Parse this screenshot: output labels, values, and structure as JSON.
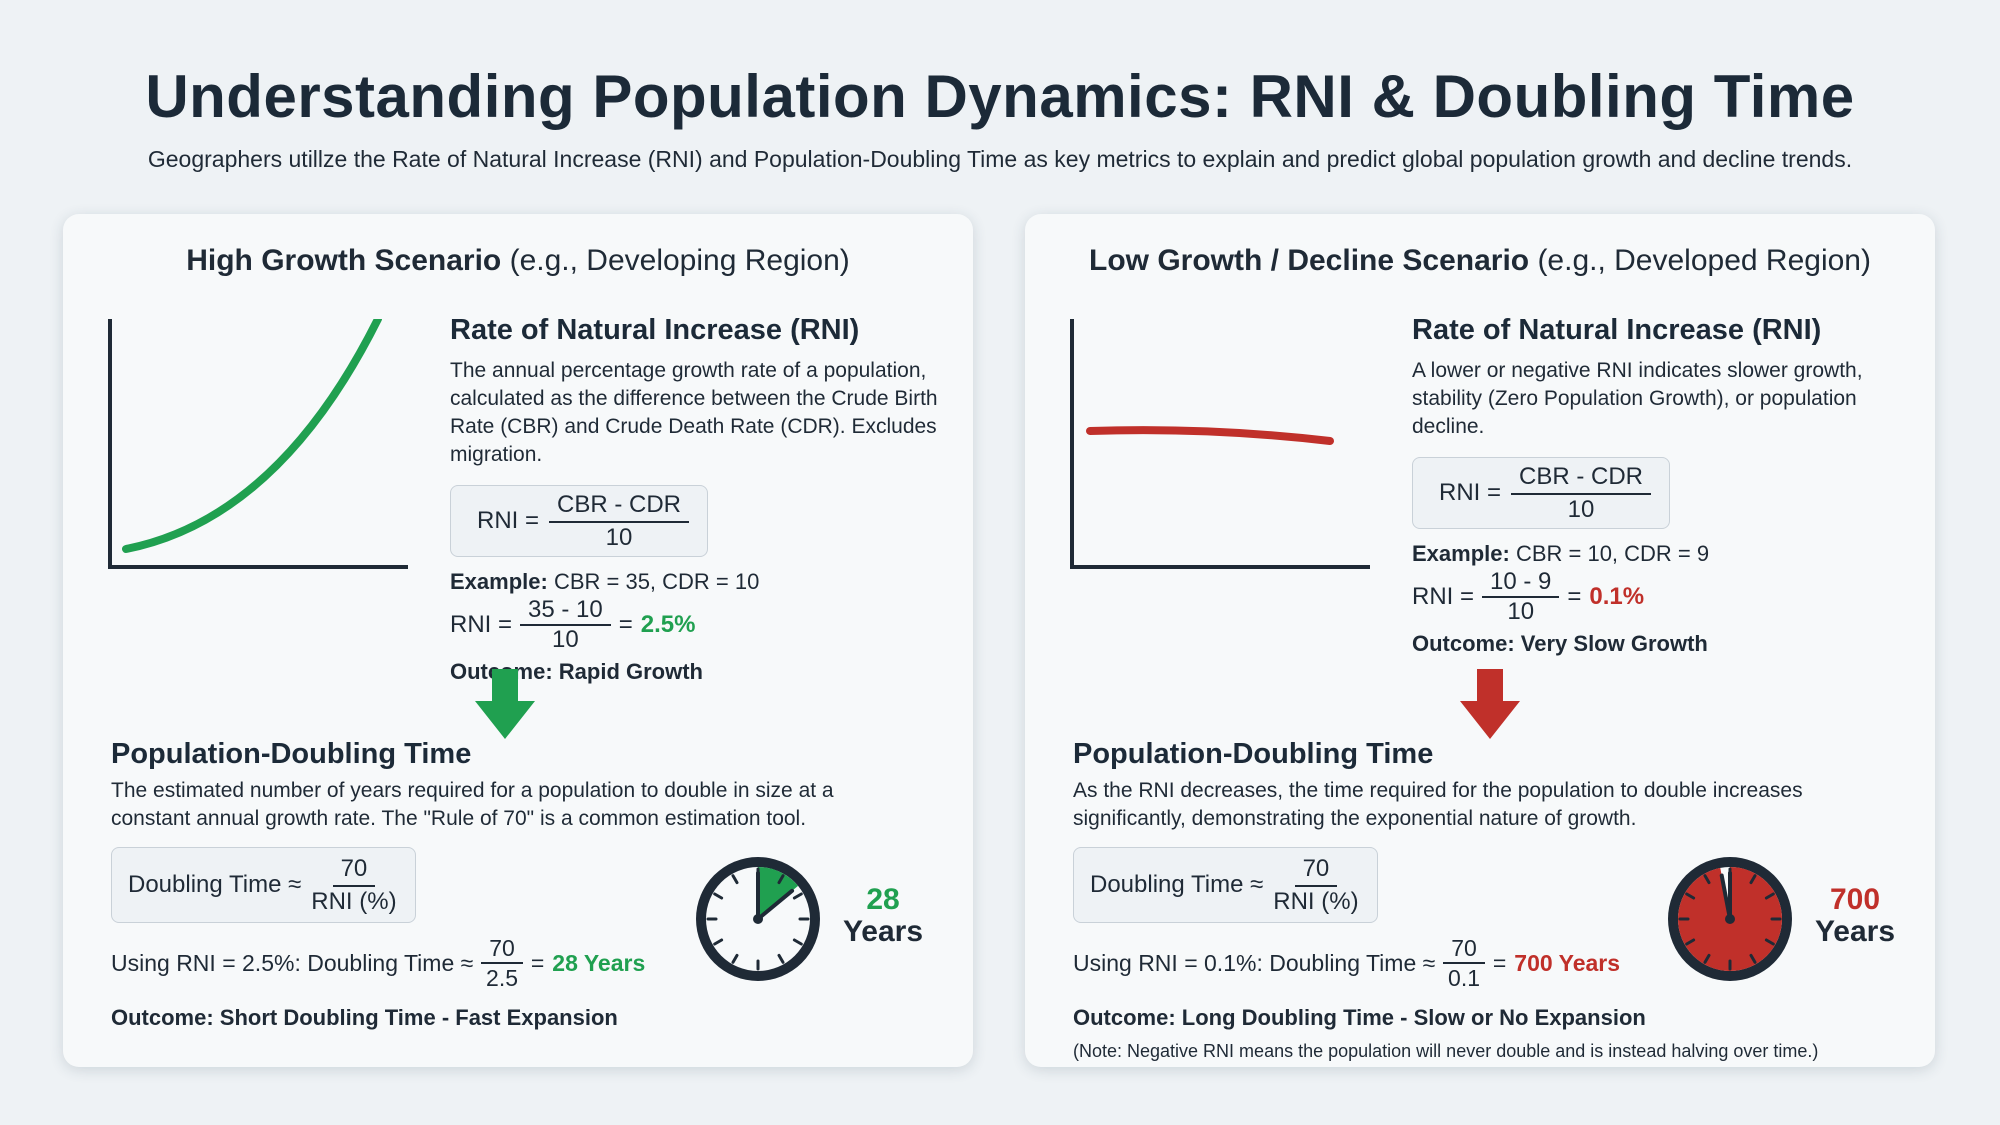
{
  "header": {
    "title": "Understanding Population Dynamics: RNI & Doubling Time",
    "subtitle": "Geographers utillze the Rate of Natural Increase (RNI) and Population-Doubling Time as key metrics to explain and predict global population growth and decline trends."
  },
  "colors": {
    "green": "#20a050",
    "red": "#c0302a",
    "dark": "#1f2a36"
  },
  "high": {
    "title_bold": "High Growth Scenario",
    "title_rest": " (e.g., Developing Region)",
    "rni_heading": "Rate of Natural Increase (RNI)",
    "rni_desc": "The annual percentage growth rate of a population, calculated as the difference between the Crude Birth Rate (CBR) and Crude Death Rate (CDR). Excludes migration.",
    "formula_lhs": "RNI =",
    "formula_num": "CBR - CDR",
    "formula_den": "10",
    "example_label": "Example:",
    "example_values": " CBR = 35, CDR = 10",
    "calc_lhs": "RNI =",
    "calc_num": "35 - 10",
    "calc_den": "10",
    "calc_eq": "=",
    "calc_result": "2.5%",
    "outcome": "Outcome: Rapid Growth",
    "dt_heading": "Population-Doubling Time",
    "dt_desc": "The estimated number of years required for a population to double in size at a constant annual growth rate. The \"Rule of 70\" is a common estimation tool.",
    "dt_lhs": "Doubling Time ≈",
    "dt_num": "70",
    "dt_den": "RNI (%)",
    "dt_calc_prefix": "Using RNI = 2.5%: Doubling Time ≈",
    "dt_calc_num": "70",
    "dt_calc_den": "2.5",
    "dt_calc_eq": "=",
    "dt_calc_result": "28 Years",
    "dt_outcome": "Outcome: Short Doubling Time - Fast Expansion",
    "clock_value": "28",
    "clock_unit": "Years",
    "clock_fraction": 0.14
  },
  "low": {
    "title_bold": "Low Growth / Decline Scenario",
    "title_rest": " (e.g., Developed Region)",
    "rni_heading": "Rate of Natural Increase (RNI)",
    "rni_desc": "A lower or negative RNI indicates slower growth, stability (Zero Population Growth), or population decline.",
    "formula_lhs": "RNI =",
    "formula_num": "CBR - CDR",
    "formula_den": "10",
    "example_label": "Example:",
    "example_values": " CBR = 10, CDR = 9",
    "calc_lhs": "RNI =",
    "calc_num": "10 - 9",
    "calc_den": "10",
    "calc_eq": "=",
    "calc_result": "0.1%",
    "outcome": "Outcome: Very Slow Growth",
    "dt_heading": "Population-Doubling Time",
    "dt_desc": "As the RNI decreases, the time required for the population to double increases significantly, demonstrating the exponential nature of growth.",
    "dt_lhs": "Doubling Time ≈",
    "dt_num": "70",
    "dt_den": "RNI (%)",
    "dt_calc_prefix": "Using RNI = 0.1%: Doubling Time ≈",
    "dt_calc_num": "70",
    "dt_calc_den": "0.1",
    "dt_calc_eq": "=",
    "dt_calc_result": "700 Years",
    "dt_outcome": "Outcome: Long Doubling Time - Slow or No Expansion",
    "note": "(Note: Negative RNI means the population will never double and is instead halving over time.)",
    "clock_value": "700",
    "clock_unit": "Years",
    "clock_fraction": 0.97
  }
}
